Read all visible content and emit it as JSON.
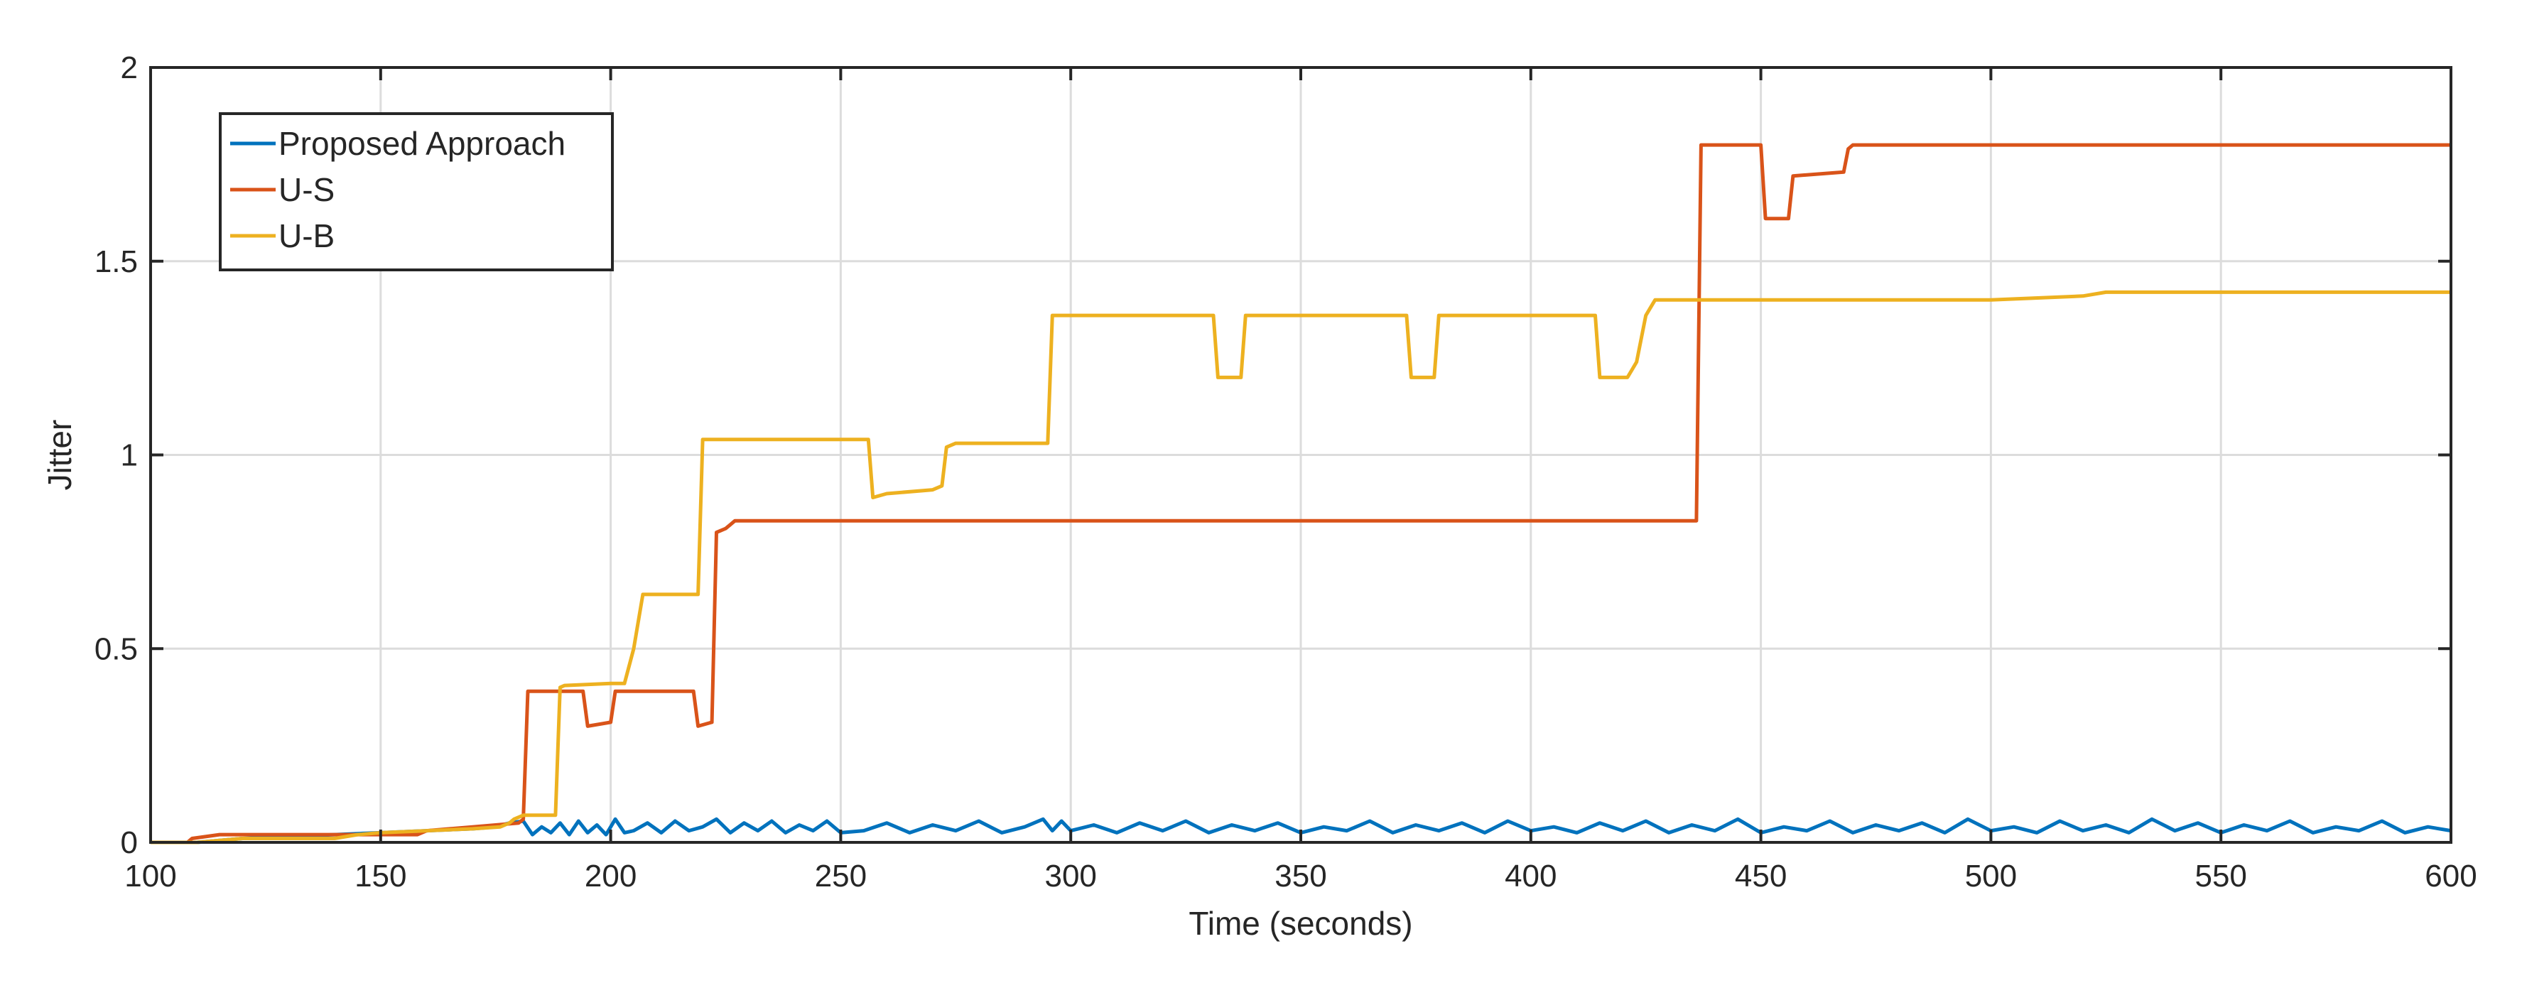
{
  "chart_data": {
    "type": "line",
    "title": "",
    "xlabel": "Time (seconds)",
    "ylabel": "Jitter",
    "xlim": [
      100,
      600
    ],
    "ylim": [
      0,
      2
    ],
    "xticks": [
      100,
      150,
      200,
      250,
      300,
      350,
      400,
      450,
      500,
      550,
      600
    ],
    "yticks": [
      0,
      0.5,
      1,
      1.5,
      2
    ],
    "xtick_labels": [
      "100",
      "150",
      "200",
      "250",
      "300",
      "350",
      "400",
      "450",
      "500",
      "550",
      "600"
    ],
    "ytick_labels": [
      "0",
      "0.5",
      "1",
      "1.5",
      "2"
    ],
    "grid": true,
    "legend_position": "top-left",
    "series": [
      {
        "name": "Proposed Approach",
        "color": "#0072BD",
        "x": [
          100,
          110,
          120,
          130,
          140,
          150,
          160,
          170,
          175,
          178,
          181,
          183,
          185,
          187,
          189,
          191,
          193,
          195,
          197,
          199,
          201,
          203,
          205,
          208,
          211,
          214,
          217,
          220,
          223,
          226,
          229,
          232,
          235,
          238,
          241,
          244,
          247,
          250,
          255,
          260,
          265,
          270,
          275,
          280,
          285,
          290,
          294,
          296,
          298,
          300,
          305,
          310,
          315,
          320,
          325,
          330,
          335,
          340,
          345,
          350,
          355,
          360,
          365,
          370,
          375,
          380,
          385,
          390,
          395,
          400,
          405,
          410,
          415,
          420,
          425,
          430,
          435,
          440,
          445,
          450,
          455,
          460,
          465,
          470,
          475,
          480,
          485,
          490,
          495,
          500,
          505,
          510,
          515,
          520,
          525,
          530,
          535,
          540,
          545,
          550,
          555,
          560,
          565,
          570,
          575,
          580,
          585,
          590,
          595,
          600
        ],
        "y": [
          0,
          0,
          0.01,
          0.015,
          0.02,
          0.025,
          0.03,
          0.035,
          0.04,
          0.05,
          0.055,
          0.02,
          0.04,
          0.025,
          0.05,
          0.02,
          0.055,
          0.025,
          0.045,
          0.02,
          0.06,
          0.025,
          0.03,
          0.05,
          0.025,
          0.055,
          0.03,
          0.04,
          0.06,
          0.025,
          0.05,
          0.03,
          0.055,
          0.025,
          0.045,
          0.03,
          0.055,
          0.025,
          0.03,
          0.05,
          0.025,
          0.045,
          0.03,
          0.055,
          0.025,
          0.04,
          0.06,
          0.03,
          0.055,
          0.03,
          0.045,
          0.025,
          0.05,
          0.03,
          0.055,
          0.025,
          0.045,
          0.03,
          0.05,
          0.025,
          0.04,
          0.03,
          0.055,
          0.025,
          0.045,
          0.03,
          0.05,
          0.025,
          0.055,
          0.03,
          0.04,
          0.025,
          0.05,
          0.03,
          0.055,
          0.025,
          0.045,
          0.03,
          0.06,
          0.025,
          0.04,
          0.03,
          0.055,
          0.025,
          0.045,
          0.03,
          0.05,
          0.025,
          0.06,
          0.03,
          0.04,
          0.025,
          0.055,
          0.03,
          0.045,
          0.025,
          0.06,
          0.03,
          0.05,
          0.025,
          0.045,
          0.03,
          0.055,
          0.025,
          0.04,
          0.03,
          0.055,
          0.025,
          0.04,
          0.03
        ]
      },
      {
        "name": "U-S",
        "color": "#D95319",
        "x": [
          100,
          108,
          109,
          115,
          140,
          158,
          160,
          170,
          175,
          180,
          181,
          182,
          194,
          195,
          200,
          201,
          218,
          219,
          222,
          223,
          225,
          226,
          227,
          230,
          235,
          250,
          300,
          350,
          400,
          430,
          436,
          437,
          450,
          451,
          452,
          456,
          457,
          468,
          469,
          470,
          475,
          500,
          550,
          600
        ],
        "y": [
          0,
          0,
          0.01,
          0.02,
          0.02,
          0.02,
          0.03,
          0.04,
          0.045,
          0.05,
          0.06,
          0.39,
          0.39,
          0.3,
          0.31,
          0.39,
          0.39,
          0.3,
          0.31,
          0.8,
          0.81,
          0.82,
          0.83,
          0.83,
          0.83,
          0.83,
          0.83,
          0.83,
          0.83,
          0.83,
          0.83,
          1.8,
          1.8,
          1.61,
          1.61,
          1.61,
          1.72,
          1.73,
          1.79,
          1.8,
          1.8,
          1.8,
          1.8,
          1.8
        ]
      },
      {
        "name": "U-B",
        "color": "#EDB120",
        "x": [
          100,
          110,
          120,
          140,
          145,
          150,
          160,
          170,
          176,
          178,
          179,
          181,
          188,
          189,
          190,
          200,
          203,
          205,
          207,
          218,
          219,
          220,
          244,
          245,
          256,
          257,
          260,
          270,
          272,
          273,
          275,
          295,
          296,
          298,
          331,
          332,
          337,
          338,
          373,
          374,
          379,
          380,
          414,
          415,
          421,
          422,
          423,
          425,
          426,
          427,
          430,
          450,
          470,
          500,
          520,
          525,
          530,
          550,
          600
        ],
        "y": [
          0,
          0,
          0.01,
          0.01,
          0.02,
          0.025,
          0.03,
          0.035,
          0.04,
          0.05,
          0.06,
          0.07,
          0.07,
          0.4,
          0.405,
          0.41,
          0.41,
          0.5,
          0.64,
          0.64,
          0.64,
          1.04,
          1.04,
          1.04,
          1.04,
          0.89,
          0.9,
          0.91,
          0.92,
          1.02,
          1.03,
          1.03,
          1.36,
          1.36,
          1.36,
          1.2,
          1.2,
          1.36,
          1.36,
          1.2,
          1.2,
          1.36,
          1.36,
          1.2,
          1.2,
          1.22,
          1.24,
          1.36,
          1.38,
          1.4,
          1.4,
          1.4,
          1.4,
          1.4,
          1.41,
          1.42,
          1.42,
          1.42,
          1.42
        ]
      }
    ]
  }
}
